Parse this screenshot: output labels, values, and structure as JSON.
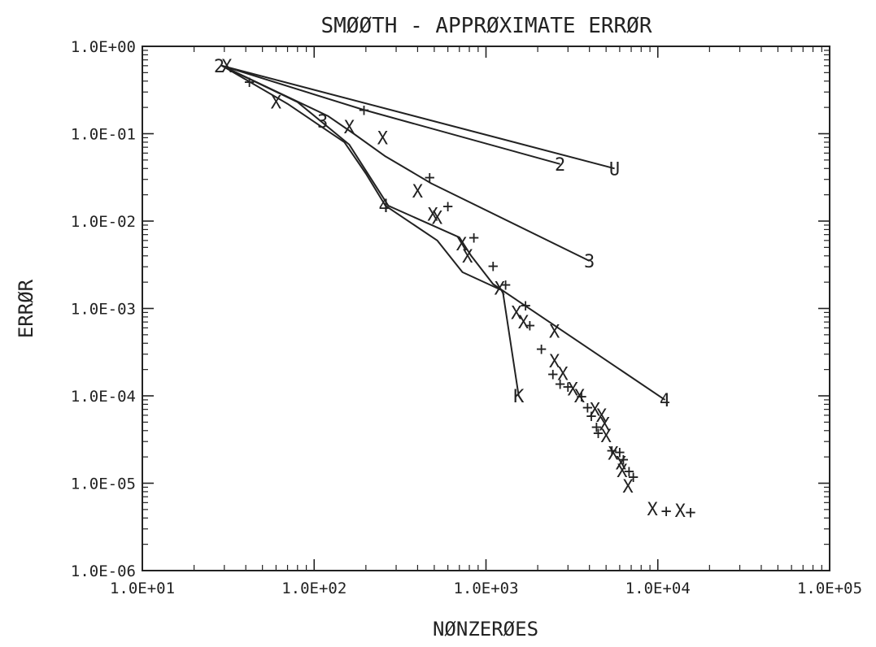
{
  "chart_data": {
    "type": "scatter",
    "title": "SMØØTH - APPRØXIMATE ERRØR",
    "xlabel": "NØNZERØES",
    "ylabel": "ERRØR",
    "x_scale": "log",
    "y_scale": "log",
    "xlim": [
      10,
      100000
    ],
    "ylim": [
      1e-06,
      1
    ],
    "grid": false,
    "x_ticks": [
      {
        "value": 10,
        "label": "1.0E+01"
      },
      {
        "value": 100,
        "label": "1.0E+02"
      },
      {
        "value": 1000,
        "label": "1.0E+03"
      },
      {
        "value": 10000,
        "label": "1.0E+04"
      },
      {
        "value": 100000,
        "label": "1.0E+05"
      }
    ],
    "y_ticks": [
      {
        "value": 1,
        "label": "1.0E+00"
      },
      {
        "value": 0.1,
        "label": "1.0E-01"
      },
      {
        "value": 0.01,
        "label": "1.0E-02"
      },
      {
        "value": 0.001,
        "label": "1.0E-03"
      },
      {
        "value": 0.0001,
        "label": "1.0E-04"
      },
      {
        "value": 1e-05,
        "label": "1.0E-05"
      },
      {
        "value": 1e-06,
        "label": "1.0E-06"
      }
    ],
    "lines": [
      {
        "label": "U",
        "points": [
          [
            29,
            0.6
          ],
          [
            5600,
            0.04
          ]
        ]
      },
      {
        "label": "2",
        "points": [
          [
            29,
            0.6
          ],
          [
            190,
            0.19
          ],
          [
            2700,
            0.045
          ]
        ]
      },
      {
        "label": "3",
        "points": [
          [
            29,
            0.6
          ],
          [
            120,
            0.16
          ],
          [
            170,
            0.1
          ],
          [
            260,
            0.055
          ],
          [
            480,
            0.027
          ],
          [
            4000,
            0.0035
          ]
        ]
      },
      {
        "label": "4",
        "points": [
          [
            29,
            0.6
          ],
          [
            80,
            0.23
          ],
          [
            160,
            0.075
          ],
          [
            270,
            0.015
          ],
          [
            700,
            0.0065
          ],
          [
            820,
            0.004
          ],
          [
            1100,
            0.0019
          ],
          [
            11000,
            9e-05
          ]
        ]
      },
      {
        "label": "K",
        "points": [
          [
            29,
            0.6
          ],
          [
            70,
            0.22
          ],
          [
            150,
            0.08
          ],
          [
            200,
            0.035
          ],
          [
            260,
            0.015
          ],
          [
            520,
            0.006
          ],
          [
            730,
            0.0026
          ],
          [
            1250,
            0.0016
          ],
          [
            1550,
            0.0001
          ]
        ]
      }
    ],
    "line_end_labels": [
      {
        "text": "U",
        "x": 5600,
        "y": 0.04
      },
      {
        "text": "2",
        "x": 2700,
        "y": 0.045
      },
      {
        "text": "3",
        "x": 4000,
        "y": 0.0035
      },
      {
        "text": "4",
        "x": 11000,
        "y": 9e-05
      },
      {
        "text": "K",
        "x": 1550,
        "y": 0.0001
      },
      {
        "text": "3",
        "x": 112,
        "y": 0.14
      },
      {
        "text": "4",
        "x": 255,
        "y": 0.015
      },
      {
        "text": "2",
        "x": 28,
        "y": 0.6
      }
    ],
    "series": [
      {
        "marker": "X",
        "points": [
          [
            31,
            0.6
          ],
          [
            60,
            0.23
          ],
          [
            160,
            0.12
          ],
          [
            250,
            0.09
          ],
          [
            400,
            0.022
          ],
          [
            490,
            0.012
          ],
          [
            520,
            0.011
          ],
          [
            720,
            0.0055
          ],
          [
            780,
            0.004
          ],
          [
            1200,
            0.0017
          ],
          [
            1500,
            0.0009
          ],
          [
            1650,
            0.0007
          ],
          [
            2500,
            0.00055
          ],
          [
            2500,
            0.00025
          ],
          [
            2800,
            0.00018
          ],
          [
            3200,
            0.00012
          ],
          [
            3500,
            0.0001
          ],
          [
            4300,
            7e-05
          ],
          [
            4700,
            6e-05
          ],
          [
            4900,
            4.8e-05
          ],
          [
            5000,
            3.5e-05
          ],
          [
            5500,
            2.2e-05
          ],
          [
            6100,
            1.7e-05
          ],
          [
            6200,
            1.4e-05
          ],
          [
            6700,
            9.3e-06
          ],
          [
            9300,
            5.1e-06
          ],
          [
            13500,
            4.9e-06
          ]
        ]
      },
      {
        "marker": "+",
        "points": [
          [
            42,
            0.4
          ],
          [
            195,
            0.19
          ],
          [
            470,
            0.032
          ],
          [
            600,
            0.015
          ],
          [
            850,
            0.0066
          ],
          [
            1100,
            0.0031
          ],
          [
            1300,
            0.0019
          ],
          [
            1700,
            0.0011
          ],
          [
            1800,
            0.00065
          ],
          [
            2100,
            0.00035
          ],
          [
            2450,
            0.00018
          ],
          [
            2700,
            0.00014
          ],
          [
            3000,
            0.00013
          ],
          [
            3600,
            0.0001
          ],
          [
            3900,
            7.5e-05
          ],
          [
            4100,
            6e-05
          ],
          [
            4400,
            4.5e-05
          ],
          [
            4500,
            3.8e-05
          ],
          [
            5400,
            2.4e-05
          ],
          [
            6000,
            2.3e-05
          ],
          [
            6300,
            1.9e-05
          ],
          [
            6800,
            1.4e-05
          ],
          [
            7200,
            1.2e-05
          ],
          [
            11200,
            4.9e-06
          ],
          [
            15500,
            4.7e-06
          ]
        ]
      }
    ]
  }
}
